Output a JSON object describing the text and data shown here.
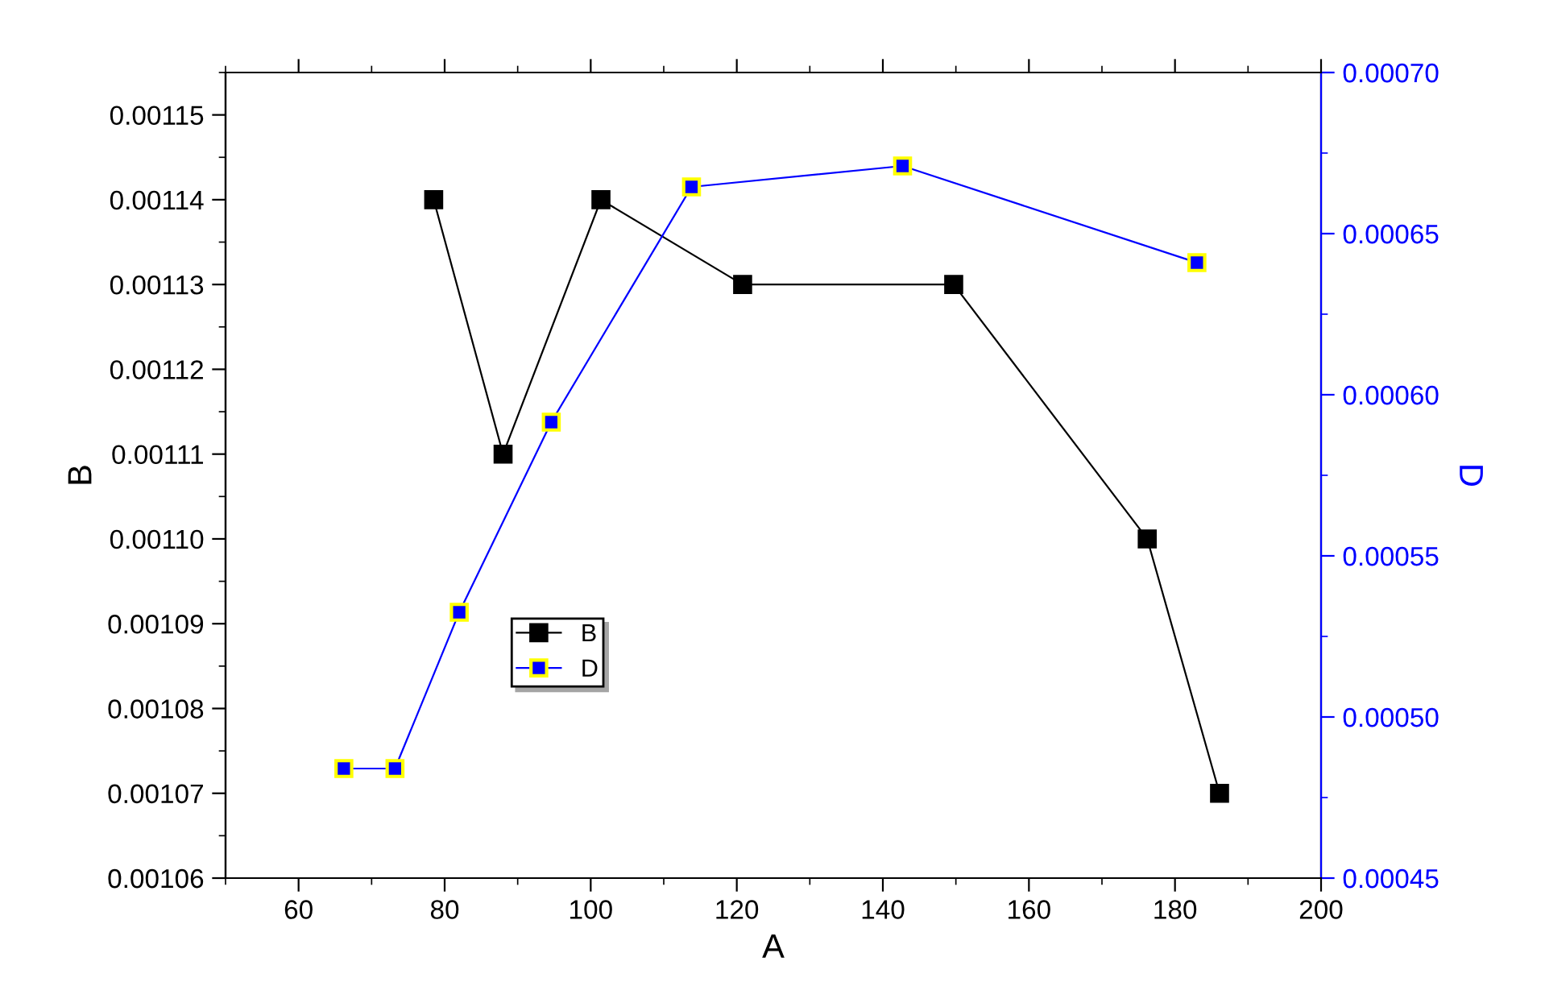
{
  "chart_data": {
    "type": "line",
    "xlabel": "A",
    "ylabel": "B",
    "y2label": "D",
    "xlim": [
      50,
      200
    ],
    "xticks": [
      60,
      80,
      100,
      120,
      140,
      160,
      180,
      200
    ],
    "ylim": [
      0.00106,
      0.001155
    ],
    "yticks": [
      {
        "value": 0.00106,
        "label": "0.00106"
      },
      {
        "value": 0.00107,
        "label": "0.00107"
      },
      {
        "value": 0.00108,
        "label": "0.00108"
      },
      {
        "value": 0.00109,
        "label": "0.00109"
      },
      {
        "value": 0.0011,
        "label": "0.00110"
      },
      {
        "value": 0.00111,
        "label": "0.00111"
      },
      {
        "value": 0.00112,
        "label": "0.00112"
      },
      {
        "value": 0.00113,
        "label": "0.00113"
      },
      {
        "value": 0.00114,
        "label": "0.00114"
      },
      {
        "value": 0.00115,
        "label": "0.00115"
      }
    ],
    "y2lim": [
      0.00045,
      0.0007
    ],
    "y2ticks": [
      {
        "value": 0.00045,
        "label": "0.00045"
      },
      {
        "value": 0.0005,
        "label": "0.00050"
      },
      {
        "value": 0.00055,
        "label": "0.00055"
      },
      {
        "value": 0.0006,
        "label": "0.00060"
      },
      {
        "value": 0.00065,
        "label": "0.00065"
      },
      {
        "value": 0.0007,
        "label": "0.00070"
      }
    ],
    "marker": "square",
    "line_style": "solid",
    "grid": false,
    "legend": "center left",
    "series": [
      {
        "name": "B",
        "color": "#000000",
        "x": [
          78.5,
          88.0,
          101.4,
          120.8,
          149.7,
          176.2,
          186.1
        ],
        "values": [
          0.00114,
          0.00111,
          0.00114,
          0.00113,
          0.00113,
          0.0011,
          0.00107
        ]
      },
      {
        "name": "D",
        "color": "#0000ff",
        "axis": "y2",
        "x": [
          66.2,
          73.2,
          82.0,
          94.6,
          113.8,
          142.7,
          183.0
        ],
        "values": [
          0.000484,
          0.000484,
          0.0005325,
          0.0005915,
          0.0006645,
          0.000671,
          0.000641
        ]
      }
    ]
  }
}
